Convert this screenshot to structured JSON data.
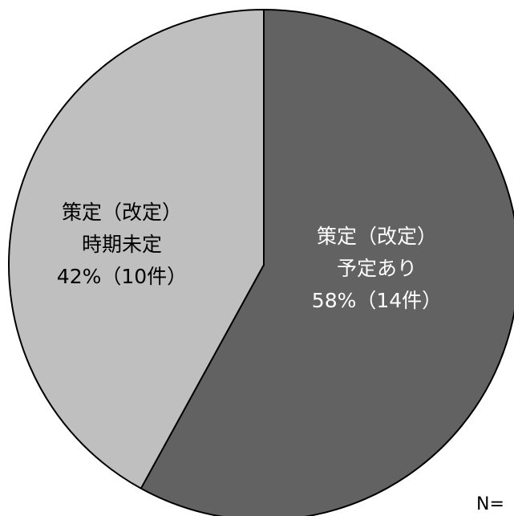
{
  "chart_data": {
    "type": "pie",
    "slices": [
      {
        "label_lines": [
          "策定（改定）",
          "予定あり",
          "58%（14件）"
        ],
        "percent": 58,
        "count": 14,
        "color": "#626262",
        "text_color": "#ffffff"
      },
      {
        "label_lines": [
          "策定（改定）",
          "時期未定",
          "42%（10件）"
        ],
        "percent": 42,
        "count": 10,
        "color": "#bfbfbf",
        "text_color": "#000000"
      }
    ],
    "start": "12 o'clock",
    "direction": "clockwise",
    "outline_color": "#000000"
  },
  "note": "N="
}
